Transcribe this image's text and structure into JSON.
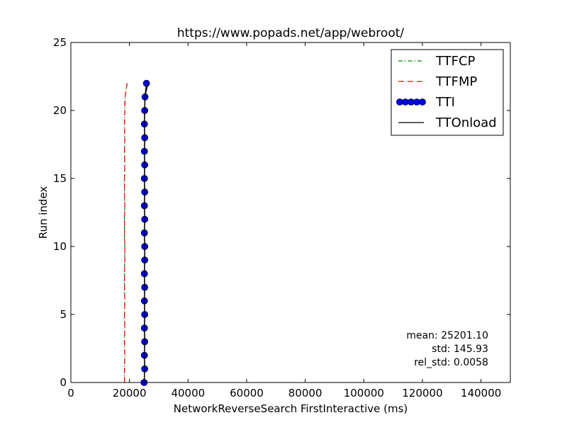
{
  "chart_data": {
    "type": "line",
    "title": "https://www.popads.net/app/webroot/",
    "xlabel": "NetworkReverseSearch FirstInteractive (ms)",
    "ylabel": "Run index",
    "xlim": [
      0,
      150000
    ],
    "ylim": [
      0,
      25
    ],
    "x_ticks": [
      0,
      20000,
      40000,
      60000,
      80000,
      100000,
      120000,
      140000
    ],
    "x_tick_labels": [
      "0",
      "20000",
      "40000",
      "60000",
      "80000",
      "100000",
      "120000",
      "140000"
    ],
    "y_ticks": [
      0,
      5,
      10,
      15,
      20,
      25
    ],
    "y_tick_labels": [
      "0",
      "5",
      "10",
      "15",
      "20",
      "25"
    ],
    "grid": false,
    "legend_position": "top-right",
    "run_index": [
      0,
      1,
      2,
      3,
      4,
      5,
      6,
      7,
      8,
      9,
      10,
      11,
      12,
      13,
      14,
      15,
      16,
      17,
      18,
      19,
      20,
      21,
      22
    ],
    "series": [
      {
        "name": "TTFCP",
        "color": "#008000",
        "style": "dash-dot",
        "x": [
          18300,
          18300,
          18400,
          18300,
          18400,
          18300,
          18400,
          18300,
          18300,
          18400,
          18400,
          18300,
          18300,
          18400,
          18300,
          18300,
          18400,
          18300,
          18400,
          18300,
          18400,
          18500,
          19200
        ],
        "y": [
          0,
          1,
          2,
          3,
          4,
          5,
          6,
          7,
          8,
          9,
          10,
          11,
          12,
          13,
          14,
          15,
          16,
          17,
          18,
          19,
          20,
          21,
          22
        ]
      },
      {
        "name": "TTFMP",
        "color": "#ff0000",
        "style": "dashed",
        "x": [
          18300,
          18300,
          18400,
          18300,
          18400,
          18300,
          18400,
          18300,
          18300,
          18400,
          18400,
          18300,
          18300,
          18400,
          18300,
          18300,
          18400,
          18300,
          18400,
          18300,
          18400,
          18500,
          19200
        ],
        "y": [
          0,
          1,
          2,
          3,
          4,
          5,
          6,
          7,
          8,
          9,
          10,
          11,
          12,
          13,
          14,
          15,
          16,
          17,
          18,
          19,
          20,
          21,
          22
        ]
      },
      {
        "name": "TTI",
        "color": "#0000ff",
        "style": "markers",
        "x": [
          25000,
          25200,
          25100,
          25200,
          25100,
          25200,
          25100,
          25200,
          25100,
          25200,
          25200,
          25100,
          25200,
          25100,
          25200,
          25100,
          25200,
          25100,
          25200,
          25100,
          25200,
          25300,
          25800
        ],
        "y": [
          0,
          1,
          2,
          3,
          4,
          5,
          6,
          7,
          8,
          9,
          10,
          11,
          12,
          13,
          14,
          15,
          16,
          17,
          18,
          19,
          20,
          21,
          22
        ]
      },
      {
        "name": "TTOnload",
        "color": "#000000",
        "style": "solid",
        "x": [
          25000,
          25200,
          25100,
          25200,
          25100,
          25200,
          25100,
          25200,
          25100,
          25200,
          25200,
          25100,
          25200,
          25100,
          25200,
          25100,
          25200,
          25100,
          25200,
          25100,
          25200,
          25300,
          26300
        ],
        "y": [
          0,
          1,
          2,
          3,
          4,
          5,
          6,
          7,
          8,
          9,
          10,
          11,
          12,
          13,
          14,
          15,
          16,
          17,
          18,
          19,
          20,
          21,
          22
        ]
      }
    ],
    "annotations": [
      "mean: 25201.10",
      "std: 145.93",
      "rel_std: 0.0058"
    ]
  }
}
